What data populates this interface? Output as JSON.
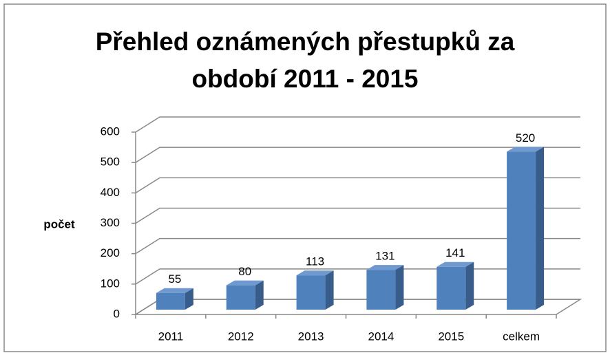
{
  "chart_data": {
    "type": "bar3d",
    "title": "Přehled oznámených přestupků za období 2011 - 2015",
    "y_label": "počet",
    "categories": [
      "2011",
      "2012",
      "2013",
      "2014",
      "2015",
      "celkem"
    ],
    "values": [
      55,
      80,
      113,
      131,
      141,
      520
    ],
    "color": "#4f81bd",
    "ylim": [
      0,
      600
    ],
    "yticks": [
      0,
      100,
      200,
      300,
      400,
      500,
      600
    ],
    "grid": true
  }
}
